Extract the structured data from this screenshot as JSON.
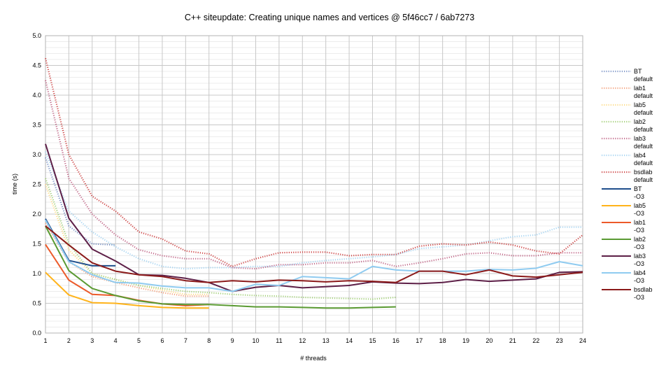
{
  "chart_data": {
    "type": "line",
    "title": "C++ siteupdate: Creating unique names and vertices @ 5f46cc7 / 6ab7273",
    "xlabel": "# threads",
    "ylabel": "time (s)",
    "xlim": [
      1,
      24
    ],
    "ylim": [
      0,
      5
    ],
    "x_ticks": [
      "1",
      "2",
      "3",
      "4",
      "5",
      "6",
      "7",
      "8",
      "9",
      "10",
      "11",
      "12",
      "13",
      "14",
      "15",
      "16",
      "17",
      "18",
      "19",
      "20",
      "21",
      "22",
      "23",
      "24"
    ],
    "y_ticks": [
      "0.0",
      "0.5",
      "1.0",
      "1.5",
      "2.0",
      "2.5",
      "3.0",
      "3.5",
      "4.0",
      "4.5",
      "5.0"
    ],
    "grid": "major and minor",
    "legend_position": "right",
    "series": [
      {
        "name": [
          "BT",
          "default"
        ],
        "color": "#7f97c8",
        "style": "dotted",
        "x": [
          1,
          2,
          3,
          4
        ],
        "values": [
          2.95,
          1.8,
          1.5,
          1.48
        ]
      },
      {
        "name": [
          "lab1",
          "default"
        ],
        "color": "#f4a582",
        "style": "dotted",
        "x": [
          1,
          2,
          3,
          4,
          5,
          6,
          7,
          8
        ],
        "values": [
          1.85,
          1.2,
          0.95,
          0.85,
          0.76,
          0.68,
          0.62,
          0.62
        ]
      },
      {
        "name": [
          "lab5",
          "default"
        ],
        "color": "#fddc8a",
        "style": "dotted",
        "x": [
          1,
          2,
          3,
          4,
          5,
          6,
          7,
          8
        ],
        "values": [
          2.5,
          1.4,
          1.0,
          0.9,
          0.8,
          0.72,
          0.65,
          0.65
        ]
      },
      {
        "name": [
          "lab2",
          "default"
        ],
        "color": "#a6d17d",
        "style": "dotted",
        "x": [
          1,
          2,
          3,
          4,
          5,
          6,
          7,
          8,
          9,
          10,
          11,
          12,
          13,
          14,
          15,
          16
        ],
        "values": [
          2.6,
          1.5,
          1.0,
          0.9,
          0.8,
          0.75,
          0.7,
          0.68,
          0.65,
          0.63,
          0.62,
          0.6,
          0.59,
          0.58,
          0.57,
          0.6
        ]
      },
      {
        "name": [
          "lab3",
          "default"
        ],
        "color": "#c46f8e",
        "style": "dotted",
        "x": [
          1,
          2,
          3,
          4,
          5,
          6,
          7,
          8,
          9,
          10,
          11,
          12,
          13,
          14,
          15,
          16,
          17,
          18,
          19,
          20,
          21,
          22,
          23,
          24
        ],
        "values": [
          4.25,
          2.6,
          2.0,
          1.65,
          1.4,
          1.3,
          1.25,
          1.25,
          1.1,
          1.08,
          1.15,
          1.15,
          1.18,
          1.18,
          1.22,
          1.12,
          1.18,
          1.25,
          1.33,
          1.35,
          1.3,
          1.3,
          1.35,
          1.35
        ]
      },
      {
        "name": [
          "lab4",
          "default"
        ],
        "color": "#aad6f2",
        "style": "dotted",
        "x": [
          1,
          2,
          3,
          4,
          5,
          6,
          7,
          8,
          9,
          10,
          11,
          12,
          13,
          14,
          15,
          16,
          17,
          18,
          19,
          20,
          21,
          22,
          23,
          24
        ],
        "values": [
          3.05,
          2.05,
          1.7,
          1.45,
          1.25,
          1.12,
          1.08,
          1.1,
          1.1,
          1.12,
          1.12,
          1.18,
          1.22,
          1.25,
          1.28,
          1.32,
          1.42,
          1.45,
          1.48,
          1.55,
          1.62,
          1.65,
          1.78,
          1.78
        ]
      },
      {
        "name": [
          "bsdlab",
          "default"
        ],
        "color": "#d04e4e",
        "style": "dotted",
        "x": [
          1,
          2,
          3,
          4,
          5,
          6,
          7,
          8,
          9,
          10,
          11,
          12,
          13,
          14,
          15,
          16,
          17,
          18,
          19,
          20,
          21,
          22,
          23,
          24
        ],
        "values": [
          4.62,
          3.0,
          2.3,
          2.05,
          1.7,
          1.58,
          1.38,
          1.33,
          1.12,
          1.25,
          1.35,
          1.36,
          1.36,
          1.3,
          1.32,
          1.32,
          1.46,
          1.5,
          1.48,
          1.53,
          1.48,
          1.38,
          1.33,
          1.65
        ]
      },
      {
        "name": [
          "BT",
          "-O3"
        ],
        "color": "#1f4e8c",
        "style": "solid",
        "x": [
          1,
          2,
          3,
          4
        ],
        "values": [
          1.92,
          1.22,
          1.13,
          1.13
        ]
      },
      {
        "name": [
          "lab5",
          "-O3"
        ],
        "color": "#ffb31a",
        "style": "solid",
        "x": [
          1,
          2,
          3,
          4,
          5,
          6,
          7,
          8
        ],
        "values": [
          1.02,
          0.64,
          0.51,
          0.5,
          0.46,
          0.43,
          0.42,
          0.42
        ]
      },
      {
        "name": [
          "lab1",
          "-O3"
        ],
        "color": "#ec5a2a",
        "style": "solid",
        "x": [
          1,
          2,
          3,
          4,
          5,
          6,
          7,
          8
        ],
        "values": [
          1.49,
          0.89,
          0.65,
          0.63,
          0.55,
          0.49,
          0.46,
          0.48
        ]
      },
      {
        "name": [
          "lab2",
          "-O3"
        ],
        "color": "#5a9a32",
        "style": "solid",
        "x": [
          1,
          2,
          3,
          4,
          5,
          6,
          7,
          8,
          9,
          10,
          11,
          12,
          13,
          14,
          15,
          16
        ],
        "values": [
          1.8,
          1.05,
          0.75,
          0.63,
          0.54,
          0.49,
          0.48,
          0.48,
          0.46,
          0.44,
          0.44,
          0.43,
          0.42,
          0.42,
          0.43,
          0.44
        ]
      },
      {
        "name": [
          "lab3",
          "-O3"
        ],
        "color": "#5d1f47",
        "style": "solid",
        "x": [
          1,
          2,
          3,
          4,
          5,
          6,
          7,
          8,
          9,
          10,
          11,
          12,
          13,
          14,
          15,
          16,
          17,
          18,
          19,
          20,
          21,
          22,
          23,
          24
        ],
        "values": [
          3.18,
          1.93,
          1.41,
          1.21,
          0.98,
          0.97,
          0.92,
          0.85,
          0.7,
          0.77,
          0.8,
          0.76,
          0.78,
          0.8,
          0.86,
          0.84,
          0.83,
          0.85,
          0.9,
          0.87,
          0.89,
          0.91,
          1.02,
          1.03
        ]
      },
      {
        "name": [
          "lab4",
          "-O3"
        ],
        "color": "#8fcbf0",
        "style": "solid",
        "x": [
          1,
          2,
          3,
          4,
          5,
          6,
          7,
          8,
          9,
          10,
          11,
          12,
          13,
          14,
          15,
          16,
          17,
          18,
          19,
          20,
          21,
          22,
          23,
          24
        ],
        "values": [
          1.9,
          1.2,
          0.98,
          0.85,
          0.84,
          0.79,
          0.76,
          0.76,
          0.7,
          0.82,
          0.8,
          0.95,
          0.93,
          0.91,
          1.12,
          1.06,
          1.04,
          1.04,
          1.04,
          1.07,
          1.06,
          1.09,
          1.2,
          1.13
        ]
      },
      {
        "name": [
          "bsdlab",
          "-O3"
        ],
        "color": "#8b1a1a",
        "style": "solid",
        "x": [
          1,
          2,
          3,
          4,
          5,
          6,
          7,
          8,
          9,
          10,
          11,
          12,
          13,
          14,
          15,
          16,
          17,
          18,
          19,
          20,
          21,
          22,
          23,
          24
        ],
        "values": [
          1.8,
          1.48,
          1.18,
          1.04,
          0.98,
          0.95,
          0.88,
          0.85,
          0.88,
          0.86,
          0.89,
          0.88,
          0.86,
          0.88,
          0.87,
          0.85,
          1.04,
          1.04,
          0.98,
          1.06,
          0.96,
          0.94,
          0.98,
          1.02
        ]
      }
    ]
  }
}
